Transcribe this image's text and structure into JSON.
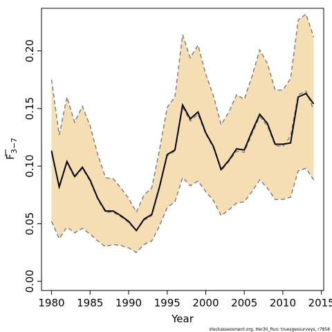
{
  "chart_data": {
    "type": "area",
    "xlabel": "Year",
    "ylabel_main": "F",
    "ylabel_sub": "3−7",
    "xlim": [
      1978.7,
      2015.3
    ],
    "ylim": [
      -0.008,
      0.237
    ],
    "xticks": [
      1980,
      1985,
      1990,
      1995,
      2000,
      2005,
      2010,
      2015
    ],
    "yticks": [
      "0.00",
      "0.05",
      "0.10",
      "0.15",
      "0.20"
    ],
    "grid": false,
    "colors": {
      "band": "#f5deb3",
      "estimate": "#000000",
      "bounds": "#7f7f7f",
      "alt_estimate": "#7f7f7f"
    },
    "x": [
      1980,
      1981,
      1982,
      1983,
      1984,
      1985,
      1986,
      1987,
      1988,
      1989,
      1990,
      1991,
      1992,
      1993,
      1994,
      1995,
      1996,
      1997,
      1998,
      1999,
      2000,
      2001,
      2002,
      2003,
      2004,
      2005,
      2006,
      2007,
      2008,
      2009,
      2010,
      2011,
      2012,
      2013,
      2014
    ],
    "series": [
      {
        "role": "estimate",
        "values": [
          0.113,
          0.082,
          0.104,
          0.091,
          0.099,
          0.088,
          0.072,
          0.061,
          0.061,
          0.057,
          0.052,
          0.044,
          0.054,
          0.058,
          0.082,
          0.11,
          0.114,
          0.153,
          0.141,
          0.147,
          0.129,
          0.117,
          0.097,
          0.105,
          0.115,
          0.114,
          0.13,
          0.145,
          0.137,
          0.119,
          0.119,
          0.12,
          0.16,
          0.163,
          0.154
        ]
      },
      {
        "role": "estimate_alt",
        "values": [
          0.114,
          0.081,
          0.103,
          0.09,
          0.098,
          0.087,
          0.071,
          0.06,
          0.06,
          0.056,
          0.051,
          0.044,
          0.053,
          0.057,
          0.081,
          0.109,
          0.113,
          0.151,
          0.139,
          0.145,
          0.128,
          0.116,
          0.096,
          0.104,
          0.113,
          0.112,
          0.128,
          0.143,
          0.135,
          0.118,
          0.117,
          0.126,
          0.162,
          0.165,
          0.149
        ]
      },
      {
        "role": "lower",
        "values": [
          0.052,
          0.037,
          0.047,
          0.042,
          0.046,
          0.041,
          0.035,
          0.03,
          0.032,
          0.031,
          0.029,
          0.025,
          0.032,
          0.035,
          0.048,
          0.064,
          0.069,
          0.09,
          0.083,
          0.087,
          0.078,
          0.07,
          0.057,
          0.062,
          0.068,
          0.069,
          0.078,
          0.088,
          0.081,
          0.071,
          0.071,
          0.073,
          0.096,
          0.098,
          0.088
        ]
      },
      {
        "role": "upper",
        "values": [
          0.175,
          0.127,
          0.16,
          0.138,
          0.152,
          0.135,
          0.11,
          0.09,
          0.089,
          0.081,
          0.072,
          0.06,
          0.075,
          0.081,
          0.114,
          0.151,
          0.16,
          0.214,
          0.194,
          0.205,
          0.18,
          0.161,
          0.136,
          0.147,
          0.162,
          0.158,
          0.178,
          0.201,
          0.189,
          0.166,
          0.166,
          0.176,
          0.227,
          0.232,
          0.212
        ]
      }
    ]
  },
  "footer": "stockassessment.org, Her30_Run: truesgessurveys, r7858"
}
